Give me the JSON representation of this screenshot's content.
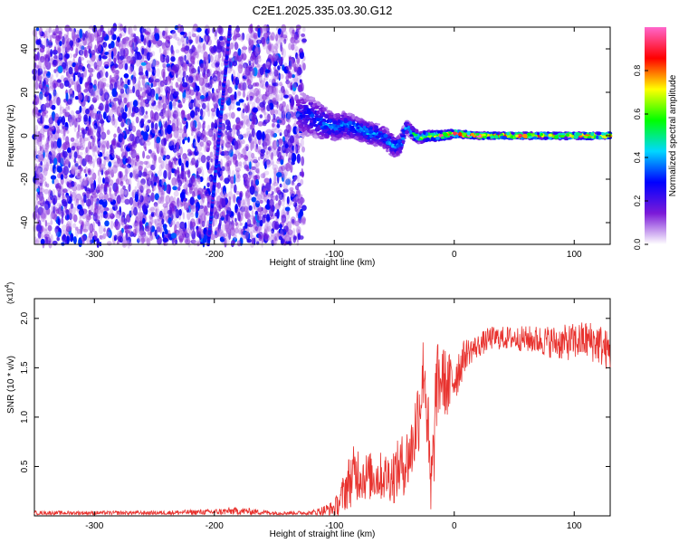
{
  "figure_title": "C2E1.2025.335.03.30.G12",
  "chart_data": [
    {
      "type": "heatmap",
      "title": "C2E1.2025.335.03.30.G12",
      "xlabel": "Height of straight line (km)",
      "ylabel": "Frequency (Hz)",
      "xlim": [
        -350,
        130
      ],
      "ylim": [
        -50,
        50
      ],
      "xticks": [
        -300,
        -200,
        -100,
        0,
        100
      ],
      "yticks": [
        -40,
        -20,
        0,
        20,
        40
      ],
      "colorbar": {
        "label": "Normalized spectral amplitude",
        "range": [
          0,
          1
        ],
        "ticks": [
          0.0,
          0.2,
          0.4,
          0.6,
          0.8
        ],
        "tick_labels": [
          "0.0",
          "0.2",
          "0.4",
          "0.6",
          "0.8"
        ],
        "colormap": [
          "#ffffff",
          "#7b1ad8",
          "#0000ff",
          "#00d8ff",
          "#00ff00",
          "#ffff00",
          "#ff0000",
          "#ff66cc"
        ]
      },
      "noise_region_x": [
        -350,
        -125
      ],
      "noise_level": 0.15,
      "interference_line": {
        "x_at_bottom": -205,
        "x_at_top": -187,
        "amplitude": 0.25
      },
      "signal_ridge": {
        "x": [
          -130,
          -120,
          -110,
          -100,
          -90,
          -80,
          -70,
          -60,
          -50,
          -45,
          -40,
          -30,
          -20,
          -10,
          0,
          20,
          40,
          60,
          80,
          100,
          130
        ],
        "freq_hz": [
          10,
          9,
          6,
          4,
          5,
          3,
          1,
          0,
          -5,
          -4,
          4,
          -1,
          0,
          0,
          1,
          0,
          0,
          0,
          0,
          0,
          0
        ],
        "amplitude": [
          0.25,
          0.3,
          0.35,
          0.35,
          0.35,
          0.4,
          0.4,
          0.35,
          0.35,
          0.4,
          0.4,
          0.55,
          0.75,
          0.8,
          0.85,
          0.9,
          0.9,
          0.9,
          0.9,
          0.9,
          0.85
        ],
        "width_hz": [
          10,
          9,
          8,
          6,
          6,
          5,
          5,
          5,
          5,
          4,
          3,
          2.5,
          2,
          2,
          1.5,
          1.2,
          1.2,
          1.2,
          1.2,
          1.2,
          1.2
        ]
      }
    },
    {
      "type": "line",
      "xlabel": "Height of straight line (km)",
      "ylabel": "SNR (10 * v/v)",
      "y_multiplier": "(x10",
      "y_multiplier_exponent": "4",
      "y_multiplier_close": ")",
      "xlim": [
        -350,
        130
      ],
      "ylim": [
        0,
        2.2
      ],
      "xticks": [
        -300,
        -200,
        -100,
        0,
        100
      ],
      "yticks": [
        0.5,
        1.0,
        1.5,
        2.0
      ],
      "ytick_labels": [
        "0.5",
        "1.0",
        "1.5",
        "2.0"
      ],
      "series": [
        {
          "name": "SNR",
          "color": "#e8322e",
          "x": [
            -350,
            -300,
            -250,
            -200,
            -180,
            -150,
            -120,
            -110,
            -100,
            -95,
            -90,
            -85,
            -80,
            -75,
            -70,
            -65,
            -60,
            -55,
            -50,
            -45,
            -40,
            -35,
            -30,
            -28,
            -25,
            -22,
            -20,
            -18,
            -15,
            -10,
            -5,
            0,
            10,
            20,
            30,
            50,
            70,
            90,
            110,
            120,
            130
          ],
          "y": [
            0.03,
            0.03,
            0.03,
            0.04,
            0.05,
            0.03,
            0.03,
            0.05,
            0.08,
            0.15,
            0.3,
            0.4,
            0.45,
            0.4,
            0.4,
            0.4,
            0.4,
            0.4,
            0.42,
            0.5,
            0.55,
            0.7,
            1.05,
            1.2,
            1.55,
            0.9,
            0.2,
            0.4,
            1.3,
            1.4,
            1.3,
            1.4,
            1.65,
            1.72,
            1.8,
            1.8,
            1.78,
            1.75,
            1.78,
            1.75,
            1.65
          ],
          "noise_amplitude": [
            0.02,
            0.02,
            0.02,
            0.03,
            0.04,
            0.02,
            0.02,
            0.05,
            0.08,
            0.15,
            0.25,
            0.3,
            0.3,
            0.25,
            0.25,
            0.25,
            0.25,
            0.25,
            0.3,
            0.3,
            0.35,
            0.35,
            0.45,
            0.4,
            0.4,
            0.5,
            0.5,
            0.5,
            0.45,
            0.35,
            0.35,
            0.3,
            0.15,
            0.12,
            0.12,
            0.12,
            0.15,
            0.18,
            0.2,
            0.22,
            0.2
          ]
        }
      ]
    }
  ]
}
